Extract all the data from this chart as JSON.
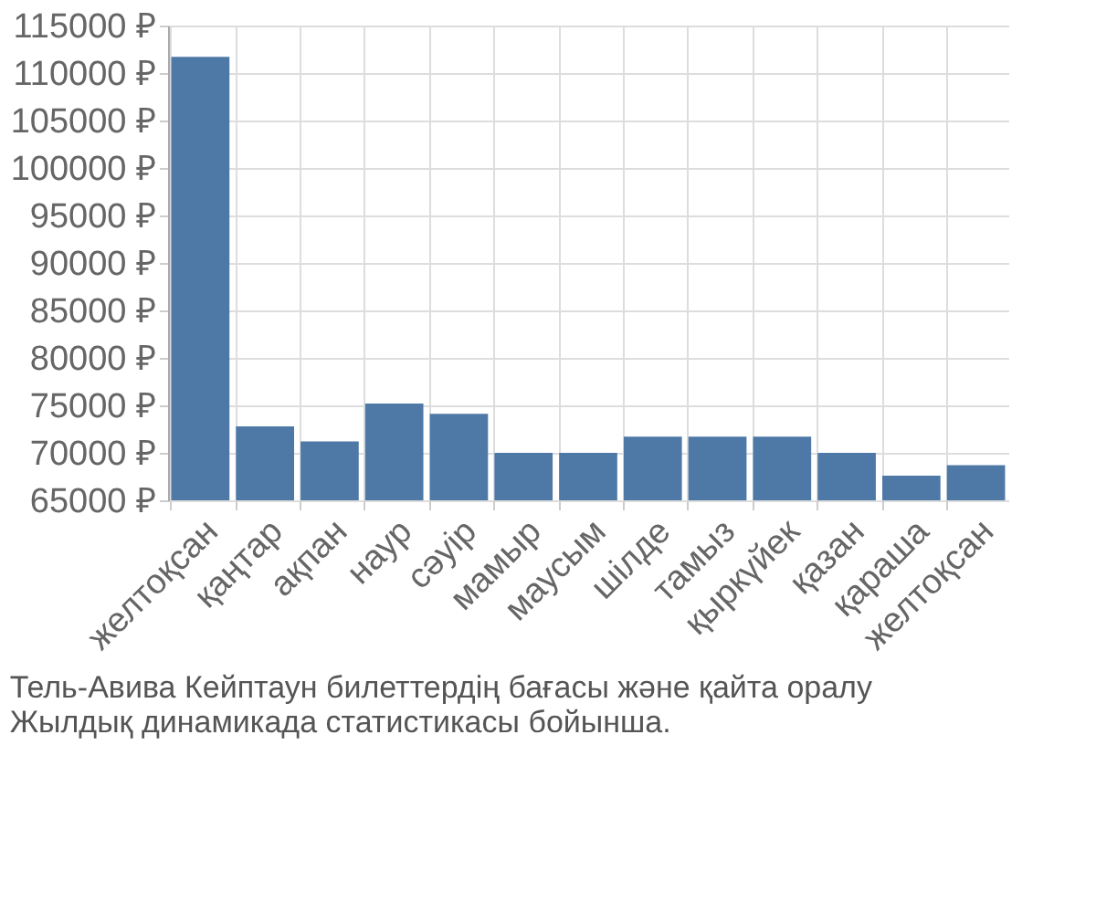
{
  "chart_data": {
    "type": "bar",
    "categories": [
      "желтоқсан",
      "қаңтар",
      "ақпан",
      "наур",
      "сәуір",
      "мамыр",
      "маусым",
      "шілде",
      "тамыз",
      "қыркүйек",
      "қазан",
      "қараша",
      "желтоқсан"
    ],
    "values": [
      111700,
      72800,
      71200,
      75200,
      74100,
      70000,
      70000,
      71700,
      71700,
      71700,
      70000,
      67600,
      68700
    ],
    "color": "#4e79a7",
    "ylim": [
      65000,
      115000
    ],
    "yticks": [
      {
        "value": 65000,
        "label": "65000 ₽"
      },
      {
        "value": 70000,
        "label": "70000 ₽"
      },
      {
        "value": 75000,
        "label": "75000 ₽"
      },
      {
        "value": 80000,
        "label": "80000 ₽"
      },
      {
        "value": 85000,
        "label": "85000 ₽"
      },
      {
        "value": 90000,
        "label": "90000 ₽"
      },
      {
        "value": 95000,
        "label": "95000 ₽"
      },
      {
        "value": 100000,
        "label": "100000 ₽"
      },
      {
        "value": 105000,
        "label": "105000 ₽"
      },
      {
        "value": 110000,
        "label": "110000 ₽"
      },
      {
        "value": 115000,
        "label": "115000 ₽"
      }
    ],
    "grid": true,
    "annotations": [
      "Тель-Авива Кейптаун билеттердің бағасы және қайта оралу",
      "Жылдық динамикада статистикасы бойынша."
    ]
  }
}
